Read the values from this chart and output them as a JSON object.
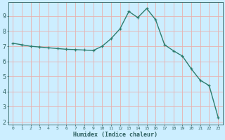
{
  "x": [
    0,
    1,
    2,
    3,
    4,
    5,
    6,
    7,
    8,
    9,
    10,
    11,
    12,
    13,
    14,
    15,
    16,
    17,
    18,
    19,
    20,
    21,
    22,
    23
  ],
  "y": [
    7.2,
    7.1,
    7.0,
    6.95,
    6.9,
    6.85,
    6.8,
    6.78,
    6.75,
    6.72,
    7.0,
    7.5,
    8.15,
    9.3,
    8.9,
    9.5,
    8.75,
    7.1,
    6.7,
    6.35,
    5.5,
    4.75,
    4.4,
    2.3
  ],
  "xlabel": "Humidex (Indice chaleur)",
  "line_color": "#2e7d6e",
  "marker": "+",
  "bg_color": "#cceeff",
  "grid_color": "#e8b0b0",
  "text_color": "#2e6060",
  "xlim": [
    -0.5,
    23.5
  ],
  "ylim": [
    1.8,
    9.9
  ],
  "yticks": [
    2,
    3,
    4,
    5,
    6,
    7,
    8,
    9
  ],
  "xticks": [
    0,
    1,
    2,
    3,
    4,
    5,
    6,
    7,
    8,
    9,
    10,
    11,
    12,
    13,
    14,
    15,
    16,
    17,
    18,
    19,
    20,
    21,
    22,
    23
  ]
}
